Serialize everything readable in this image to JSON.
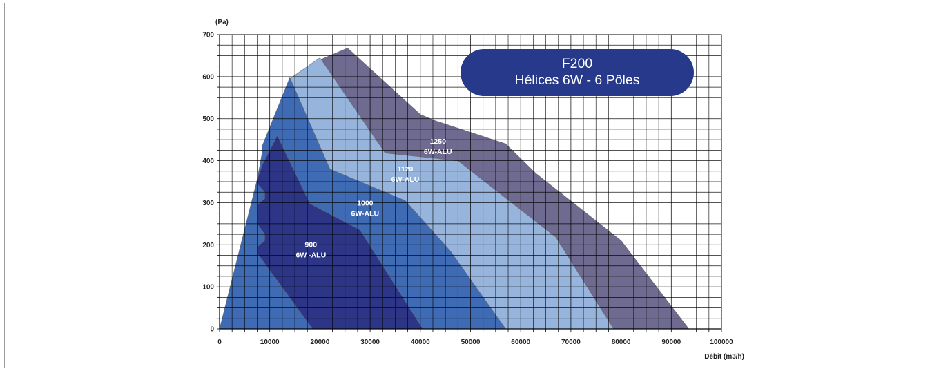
{
  "chart_data": {
    "type": "area",
    "title": "F200",
    "subtitle": "Hélices 6W - 6 Pôles",
    "ylabel": "(Pa)",
    "xlabel": "Débit (m3/h)",
    "xlim": [
      0,
      100000
    ],
    "ylim": [
      0,
      700
    ],
    "x_ticks": [
      "0",
      "10000",
      "20000",
      "30000",
      "40000",
      "50000",
      "60000",
      "70000",
      "80000",
      "90000",
      "100000"
    ],
    "y_ticks": [
      "0",
      "100",
      "200",
      "300",
      "400",
      "500",
      "600",
      "700"
    ],
    "grid": true,
    "series": [
      {
        "name": "1250 6W-ALU",
        "label_lines": [
          "1250",
          "6W-ALU"
        ],
        "label_pos": [
          43500,
          440
        ],
        "color": "#6e6a90",
        "points": [
          [
            20000,
            640
          ],
          [
            25500,
            668
          ],
          [
            40000,
            510
          ],
          [
            43000,
            495
          ],
          [
            57000,
            440
          ],
          [
            63000,
            370
          ],
          [
            80000,
            210
          ],
          [
            93500,
            0
          ],
          [
            0,
            0
          ]
        ]
      },
      {
        "name": "1120 6W-ALU",
        "label_lines": [
          "1120",
          "6W-ALU"
        ],
        "label_pos": [
          37000,
          375
        ],
        "color": "#96b4dc",
        "points": [
          [
            14000,
            595
          ],
          [
            20000,
            645
          ],
          [
            33000,
            418
          ],
          [
            47500,
            400
          ],
          [
            67000,
            218
          ],
          [
            78500,
            0
          ],
          [
            0,
            0
          ]
        ]
      },
      {
        "name": "1000 6W-ALU",
        "label_lines": [
          "1000",
          "6W-ALU"
        ],
        "label_pos": [
          29000,
          293
        ],
        "color": "#3e6bb3",
        "points": [
          [
            7500,
            355
          ],
          [
            8500,
            420
          ],
          [
            8500,
            435
          ],
          [
            14000,
            598
          ],
          [
            22000,
            380
          ],
          [
            37000,
            305
          ],
          [
            46000,
            185
          ],
          [
            57000,
            0
          ],
          [
            0,
            0
          ]
        ]
      },
      {
        "name": "900 6W -ALU",
        "label_lines": [
          "900",
          "6W -ALU"
        ],
        "label_pos": [
          18200,
          195
        ],
        "color": "#2d3586",
        "points": [
          [
            7500,
            180
          ],
          [
            7500,
            195
          ],
          [
            9000,
            210
          ],
          [
            9000,
            225
          ],
          [
            7500,
            250
          ],
          [
            7500,
            295
          ],
          [
            9000,
            310
          ],
          [
            9000,
            325
          ],
          [
            7500,
            345
          ],
          [
            7500,
            355
          ],
          [
            8500,
            390
          ],
          [
            11500,
            460
          ],
          [
            18000,
            298
          ],
          [
            28000,
            235
          ],
          [
            40500,
            0
          ],
          [
            18500,
            0
          ]
        ]
      }
    ]
  }
}
